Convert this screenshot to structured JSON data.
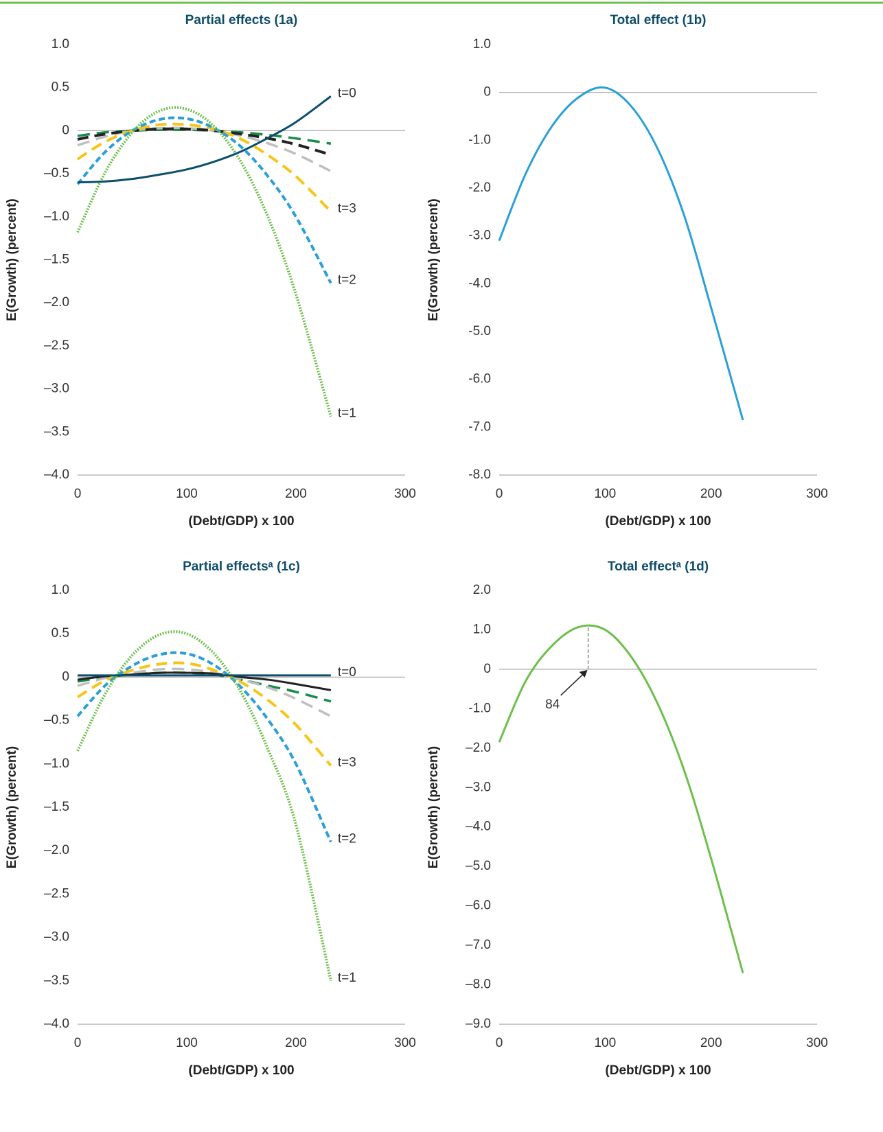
{
  "chart_data": [
    {
      "type": "line",
      "title": "Partial effects (1a)",
      "x_label": "(Debt/GDP) x 100",
      "y_label": "E(Growth) (percent)",
      "xlim": [
        0,
        300
      ],
      "xticks": [
        0,
        100,
        200,
        300
      ],
      "ylim": [
        -4,
        1
      ],
      "yticks": [
        {
          "value": 1,
          "label": "1.0"
        },
        0.5,
        0,
        {
          "value": -0.5,
          "label": "–0.5"
        },
        {
          "value": -1,
          "label": "–1.0"
        },
        {
          "value": -1.5,
          "label": "–1.5"
        },
        {
          "value": -2,
          "label": "–2.0"
        },
        {
          "value": -2.5,
          "label": "–2.5"
        },
        {
          "value": -3,
          "label": "–3.0"
        },
        {
          "value": -3.5,
          "label": "–3.5"
        },
        {
          "value": -4,
          "label": "–4.0"
        }
      ],
      "x": [
        0,
        25,
        50,
        75,
        100,
        125,
        150,
        175,
        200,
        232
      ],
      "series": [
        {
          "color": "#1a8a4a",
          "dash": "dash-dot",
          "values": [
            -0.06,
            -0.02,
            0.0,
            0.01,
            0.01,
            0.0,
            -0.02,
            -0.05,
            -0.09,
            -0.15
          ]
        },
        {
          "color": "#bfbfbf",
          "dash": "dash-dot",
          "values": [
            -0.17,
            -0.07,
            0.0,
            0.03,
            0.03,
            0.0,
            -0.06,
            -0.15,
            -0.27,
            -0.47
          ]
        },
        {
          "color": "#222222",
          "dash": "long-dash",
          "values": [
            -0.1,
            -0.04,
            0.0,
            0.02,
            0.02,
            0.0,
            -0.04,
            -0.09,
            -0.16,
            -0.28
          ]
        },
        {
          "name": "t=3",
          "color": "#f5c518",
          "dash": "long-dash",
          "values": [
            -0.33,
            -0.13,
            0.0,
            0.07,
            0.07,
            0.02,
            -0.1,
            -0.29,
            -0.53,
            -0.94
          ]
        },
        {
          "name": "t=2",
          "color": "#2a9fd8",
          "dash": "dashed",
          "values": [
            -0.62,
            -0.25,
            0.0,
            0.13,
            0.14,
            0.03,
            -0.19,
            -0.54,
            -1.0,
            -1.77
          ]
        },
        {
          "name": "t=1",
          "color": "#6dbf4b",
          "dash": "dotted",
          "values": [
            -1.18,
            -0.49,
            -0.02,
            0.23,
            0.25,
            0.05,
            -0.37,
            -1.02,
            -1.9,
            -3.32
          ]
        },
        {
          "name": "t=0",
          "color": "#0b4f6c",
          "dash": "solid",
          "values": [
            -0.6,
            -0.59,
            -0.56,
            -0.51,
            -0.45,
            -0.36,
            -0.24,
            -0.08,
            0.1,
            0.4
          ]
        }
      ]
    },
    {
      "type": "line",
      "title": "Total effect (1b)",
      "x_label": "(Debt/GDP) x 100",
      "y_label": "E(Growth) (percent)",
      "xlim": [
        0,
        300
      ],
      "xticks": [
        0,
        100,
        200,
        300
      ],
      "ylim": [
        -8,
        1
      ],
      "yticks": [
        {
          "value": 1,
          "label": "1.0"
        },
        0,
        {
          "value": -1,
          "label": "-1.0"
        },
        {
          "value": -2,
          "label": "-2.0"
        },
        {
          "value": -3,
          "label": "-3.0"
        },
        {
          "value": -4,
          "label": "-4.0"
        },
        {
          "value": -5,
          "label": "-5.0"
        },
        {
          "value": -6,
          "label": "-6.0"
        },
        {
          "value": -7,
          "label": "-7.0"
        },
        {
          "value": -8,
          "label": "-8.0"
        }
      ],
      "x": [
        0,
        25,
        50,
        75,
        100,
        125,
        150,
        175,
        200,
        230
      ],
      "series": [
        {
          "color": "#2a9fd8",
          "dash": "solid",
          "values": [
            -3.1,
            -1.7,
            -0.7,
            -0.1,
            0.1,
            -0.3,
            -1.2,
            -2.6,
            -4.5,
            -6.85
          ]
        }
      ]
    },
    {
      "type": "line",
      "title": "Partial effectsᵃ (1c)",
      "x_label": "(Debt/GDP) x 100",
      "y_label": "E(Growth) (percent)",
      "xlim": [
        0,
        300
      ],
      "xticks": [
        0,
        100,
        200,
        300
      ],
      "ylim": [
        -4,
        1
      ],
      "yticks": [
        {
          "value": 1,
          "label": "1.0"
        },
        0.5,
        0,
        {
          "value": -0.5,
          "label": "–0.5"
        },
        {
          "value": -1,
          "label": "–1.0"
        },
        {
          "value": -1.5,
          "label": "–1.5"
        },
        {
          "value": -2,
          "label": "–2.0"
        },
        {
          "value": -2.5,
          "label": "–2.5"
        },
        {
          "value": -3,
          "label": "–3.0"
        },
        {
          "value": -3.5,
          "label": "–3.5"
        },
        {
          "value": -4,
          "label": "–4.0"
        }
      ],
      "x": [
        0,
        25,
        50,
        75,
        100,
        125,
        150,
        175,
        200,
        232
      ],
      "series": [
        {
          "color": "#1a8a4a",
          "dash": "dash-dot",
          "values": [
            -0.05,
            0.0,
            0.03,
            0.05,
            0.05,
            0.03,
            -0.03,
            -0.1,
            -0.17,
            -0.28
          ]
        },
        {
          "color": "#bfbfbf",
          "dash": "dash-dot",
          "values": [
            -0.1,
            -0.01,
            0.05,
            0.09,
            0.09,
            0.05,
            -0.03,
            -0.12,
            -0.25,
            -0.45
          ]
        },
        {
          "color": "#222222",
          "dash": "solid",
          "values": [
            -0.03,
            0.01,
            0.03,
            0.05,
            0.05,
            0.04,
            0.0,
            -0.03,
            -0.08,
            -0.15
          ]
        },
        {
          "name": "t=3",
          "color": "#f5c518",
          "dash": "long-dash",
          "values": [
            -0.23,
            -0.04,
            0.08,
            0.15,
            0.16,
            0.08,
            -0.06,
            -0.27,
            -0.55,
            -1.02
          ]
        },
        {
          "name": "t=2",
          "color": "#2a9fd8",
          "dash": "dashed",
          "values": [
            -0.45,
            -0.1,
            0.13,
            0.26,
            0.27,
            0.14,
            -0.12,
            -0.5,
            -1.0,
            -1.9
          ]
        },
        {
          "name": "t=1",
          "color": "#6dbf4b",
          "dash": "dotted",
          "values": [
            -0.85,
            -0.2,
            0.25,
            0.49,
            0.5,
            0.27,
            -0.18,
            -0.85,
            -1.7,
            -3.5
          ]
        },
        {
          "name": "t=0",
          "color": "#0b4f6c",
          "dash": "solid",
          "values": [
            0.02,
            0.02,
            0.02,
            0.02,
            0.02,
            0.02,
            0.02,
            0.02,
            0.02,
            0.02
          ]
        }
      ]
    },
    {
      "type": "line",
      "title": "Total effectᵃ (1d)",
      "x_label": "(Debt/GDP) x 100",
      "y_label": "E(Growth) (percent)",
      "xlim": [
        0,
        300
      ],
      "xticks": [
        0,
        100,
        200,
        300
      ],
      "ylim": [
        -9,
        2
      ],
      "yticks": [
        {
          "value": 2,
          "label": "2.0"
        },
        {
          "value": 1,
          "label": "1.0"
        },
        0,
        {
          "value": -1,
          "label": "-1.0"
        },
        {
          "value": -2,
          "label": "–2.0"
        },
        {
          "value": -3,
          "label": "–3.0"
        },
        {
          "value": -4,
          "label": "–4.0"
        },
        {
          "value": -5,
          "label": "–5.0"
        },
        {
          "value": -6,
          "label": "–6.0"
        },
        {
          "value": -7,
          "label": "–7.0"
        },
        {
          "value": -8,
          "label": "–8.0"
        },
        {
          "value": -9,
          "label": "–9.0"
        }
      ],
      "x": [
        0,
        25,
        50,
        75,
        100,
        125,
        150,
        175,
        200,
        230
      ],
      "series": [
        {
          "color": "#6dbf4b",
          "dash": "solid",
          "values": [
            -1.85,
            -0.3,
            0.6,
            1.07,
            1.0,
            0.3,
            -0.9,
            -2.6,
            -4.8,
            -7.7
          ]
        }
      ],
      "annotation": {
        "x": 84,
        "y": 1.1
      }
    }
  ]
}
